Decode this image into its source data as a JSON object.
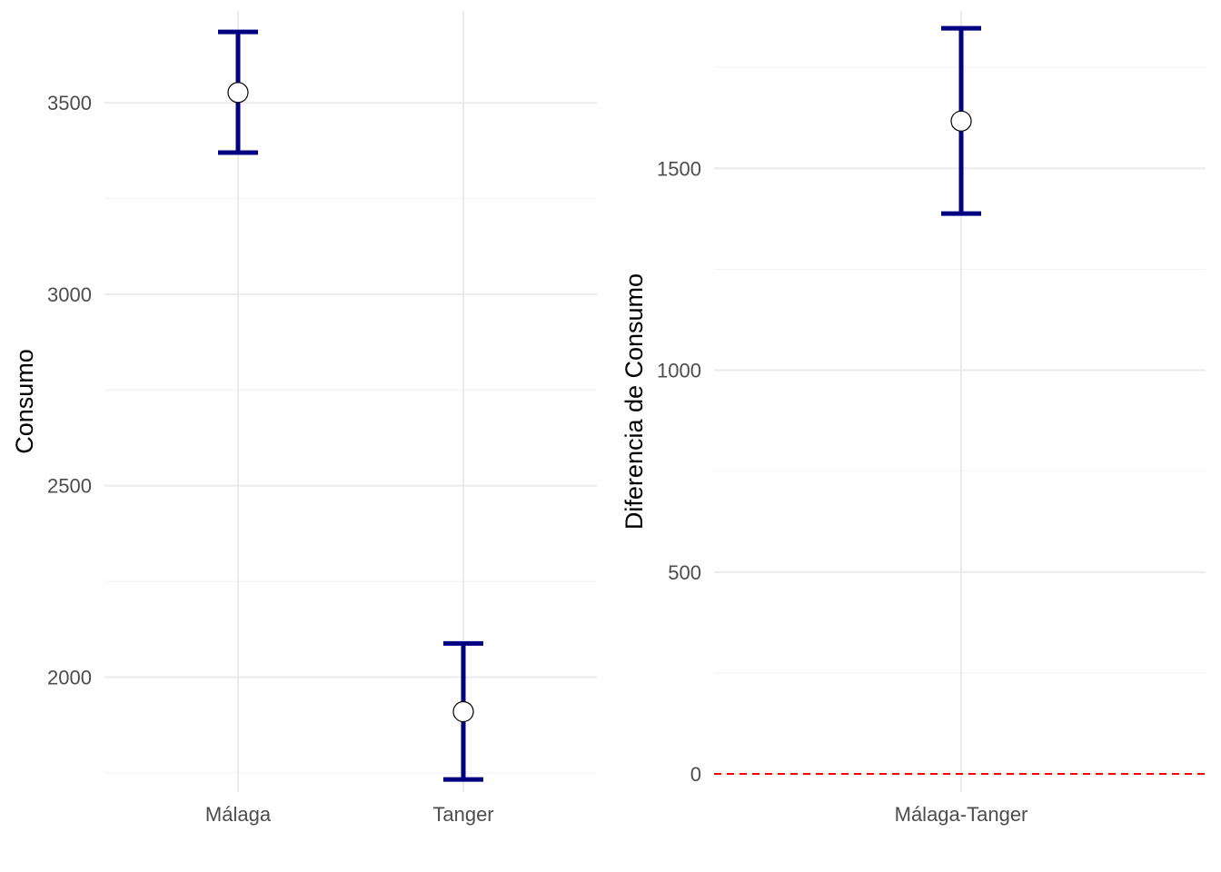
{
  "chart_data": [
    {
      "type": "errorbar",
      "title": "",
      "xlabel": "",
      "ylabel": "Consumo",
      "categories": [
        "Málaga",
        "Tanger"
      ],
      "values": [
        3527,
        1910
      ],
      "lower": [
        3370,
        1733
      ],
      "upper": [
        3685,
        2088
      ],
      "ylim": [
        1700,
        3740
      ],
      "yticks": [
        2000,
        2500,
        3000,
        3500
      ],
      "yticklabels": [
        "2000",
        "2500",
        "3000",
        "3500"
      ],
      "yminor": [
        1750,
        2250,
        2750,
        3250,
        3750
      ],
      "grid": true,
      "legend": "none"
    },
    {
      "type": "errorbar",
      "title": "",
      "xlabel": "",
      "ylabel": "Diferencia de Consumo",
      "categories": [
        "Málaga-Tanger"
      ],
      "values": [
        1617
      ],
      "lower": [
        1388
      ],
      "upper": [
        1847
      ],
      "ylim": [
        -45,
        1890
      ],
      "yticks": [
        0,
        500,
        1000,
        1500
      ],
      "yticklabels": [
        "0",
        "500",
        "1000",
        "1500"
      ],
      "yminor": [
        250,
        750,
        1250,
        1750
      ],
      "reference_line": 0,
      "grid": true,
      "legend": "none"
    }
  ],
  "colors": {
    "errorbar": "#000080",
    "point_fill": "#ffffff",
    "point_stroke": "#000000",
    "grid_major": "#ebebeb",
    "grid_minor": "#f4f4f4",
    "reference_line": "#ff0000"
  }
}
